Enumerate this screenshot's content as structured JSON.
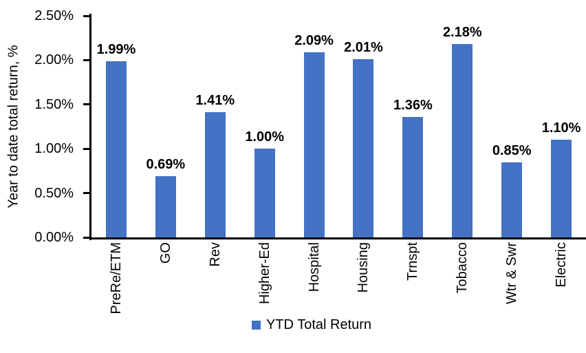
{
  "chart_data": {
    "type": "bar",
    "title": "",
    "ylabel": "Year to date total return, %",
    "xlabel": "",
    "categories": [
      "PreRe/ETM",
      "GO",
      "Rev",
      "Higher-Ed",
      "Hospital",
      "Housing",
      "Trnspt",
      "Tobacco",
      "Wtr & Swr",
      "Electric"
    ],
    "values": [
      1.99,
      0.69,
      1.41,
      1.0,
      2.09,
      2.01,
      1.36,
      2.18,
      0.85,
      1.1
    ],
    "data_labels": [
      "1.99%",
      "0.69%",
      "1.41%",
      "1.00%",
      "2.09%",
      "2.01%",
      "1.36%",
      "2.18%",
      "0.85%",
      "1.10%"
    ],
    "y_ticks": [
      "0.00%",
      "0.50%",
      "1.00%",
      "1.50%",
      "2.00%",
      "2.50%"
    ],
    "ylim": [
      0,
      2.5
    ],
    "legend": [
      "YTD Total Return"
    ],
    "legend_position": "bottom",
    "grid": false,
    "bar_color": "#4472C4",
    "axis_color": "#000000",
    "text_color": "#000000"
  }
}
